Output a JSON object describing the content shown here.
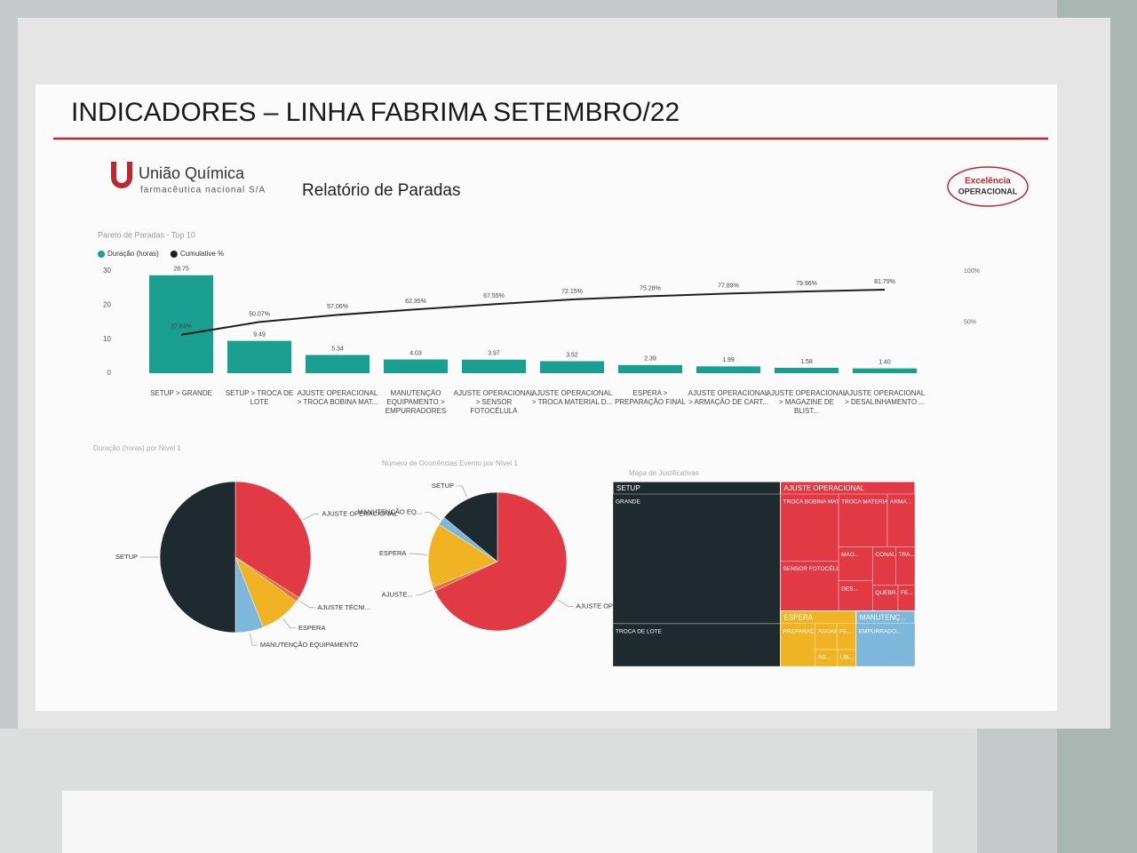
{
  "header": {
    "title": "INDICADORES – LINHA FABRIMA SETEMBRO/22",
    "brand": "União Química",
    "brand_sub": "farmacêutica nacional S/A",
    "report": "Relatório de Paradas",
    "badge_top": "Excelência",
    "badge_bottom": "OPERACIONAL"
  },
  "chart_data": [
    {
      "type": "bar",
      "title": "Pareto de Paradas - Top 10",
      "categories": [
        "SETUP > GRANDE",
        "SETUP > TROCA DE LOTE",
        "AJUSTE OPERACIONAL > TROCA BOBINA MAT...",
        "MANUTENÇÃO EQUIPAMENTO > EMPURRADORES",
        "AJUSTE OPERACIONAL > SENSOR FOTOCÉLULA",
        "AJUSTE OPERACIONAL > TROCA MATERIAL D...",
        "ESPERA > PREPARAÇÃO FINAL",
        "AJUSTE OPERACIONAL > ARMAÇÃO DE CART...",
        "AJUSTE OPERACIONAL > MAGAZINE DE BLIST...",
        "AJUSTE OPERACIONAL > DESALINHAMENTO ..."
      ],
      "series": [
        {
          "name": "Duração (horas)",
          "color": "#1a9e8f",
          "values": [
            28.75,
            9.49,
            5.34,
            4.03,
            3.97,
            3.52,
            2.39,
            1.99,
            1.58,
            1.4
          ],
          "value_labels": [
            "28.75",
            "9.49",
            "5.34",
            "4.03",
            "3.97",
            "3.52",
            "2.39",
            "1.99",
            "1.58",
            "1.40"
          ]
        },
        {
          "name": "Cumulative %",
          "color": "#1f1f1f",
          "type": "line",
          "axis": "y2",
          "values": [
            37.64,
            50.07,
            57.06,
            62.35,
            67.55,
            72.15,
            75.28,
            77.89,
            79.96,
            81.79
          ],
          "value_labels": [
            "37.64%",
            "50.07%",
            "57.06%",
            "62.35%",
            "67.55%",
            "72.15%",
            "75.28%",
            "77.89%",
            "79.96%",
            "81.79%"
          ]
        }
      ],
      "ylim": [
        0,
        30
      ],
      "yticks": [
        0,
        10,
        20,
        30
      ],
      "y2lim": [
        0,
        100
      ],
      "y2ticks": [
        {
          "value": 50,
          "label": "50%"
        },
        {
          "value": 100,
          "label": "100%"
        }
      ]
    },
    {
      "type": "pie",
      "title": "Duração (horas) por Nível 1",
      "categories": [
        "AJUSTE OPERACIONAL",
        "AJUSTE TÉCNI...",
        "ESPERA",
        "MANUTENÇÃO EQUIPAMENTO",
        "SETUP"
      ],
      "values": [
        34,
        1,
        9,
        6,
        50
      ],
      "colors": [
        "#e23a44",
        "#e8733a",
        "#f0b323",
        "#7db7dc",
        "#1f2a2e"
      ]
    },
    {
      "type": "pie",
      "title": "Número de Ocorrências Evento por Nível 1",
      "categories": [
        "AJUSTE OPERACIONAL",
        "AJUSTE...",
        "ESPERA",
        "MANUTENÇÃO EQ...",
        "SETUP"
      ],
      "values": [
        68,
        1,
        15,
        2,
        14
      ],
      "colors": [
        "#e23a44",
        "#e8733a",
        "#f0b323",
        "#7db7dc",
        "#1f2a2e"
      ]
    },
    {
      "type": "treemap",
      "title": "Mapa de Justificativas",
      "groups": [
        {
          "name": "SETUP",
          "color": "#1f2a2e",
          "children": [
            {
              "name": "GRANDE",
              "value": 28.75
            },
            {
              "name": "TROCA DE LOTE",
              "value": 9.49
            }
          ]
        },
        {
          "name": "AJUSTE OPERACIONAL",
          "color": "#e23a44",
          "children": [
            {
              "name": "TROCA BOBINA MATER...",
              "value": 5.34
            },
            {
              "name": "SENSOR FOTOCÉLULA",
              "value": 3.97
            },
            {
              "name": "TROCA MATERIAL DE C...",
              "value": 3.52
            },
            {
              "name": "ARMA...",
              "value": 1.99
            },
            {
              "name": "MAG...",
              "value": 1.58
            },
            {
              "name": "DES...",
              "value": 1.4
            },
            {
              "name": "CONAL...",
              "value": 1.2
            },
            {
              "name": "TRA...",
              "value": 1
            },
            {
              "name": "QUEBR...",
              "value": 0.9
            },
            {
              "name": "FE...",
              "value": 0.6
            }
          ]
        },
        {
          "name": "ESPERA",
          "color": "#f0b323",
          "children": [
            {
              "name": "PREPARAÇ...",
              "value": 2.39
            },
            {
              "name": "AGUARDAN...",
              "value": 0.9
            },
            {
              "name": "FE...",
              "value": 0.8
            },
            {
              "name": "AG...",
              "value": 0.6
            },
            {
              "name": "LIB...",
              "value": 0.5
            }
          ]
        },
        {
          "name": "MANUTENÇ...",
          "color": "#7db7dc",
          "children": [
            {
              "name": "EMPURRADO...",
              "value": 4.03
            }
          ]
        }
      ]
    }
  ]
}
